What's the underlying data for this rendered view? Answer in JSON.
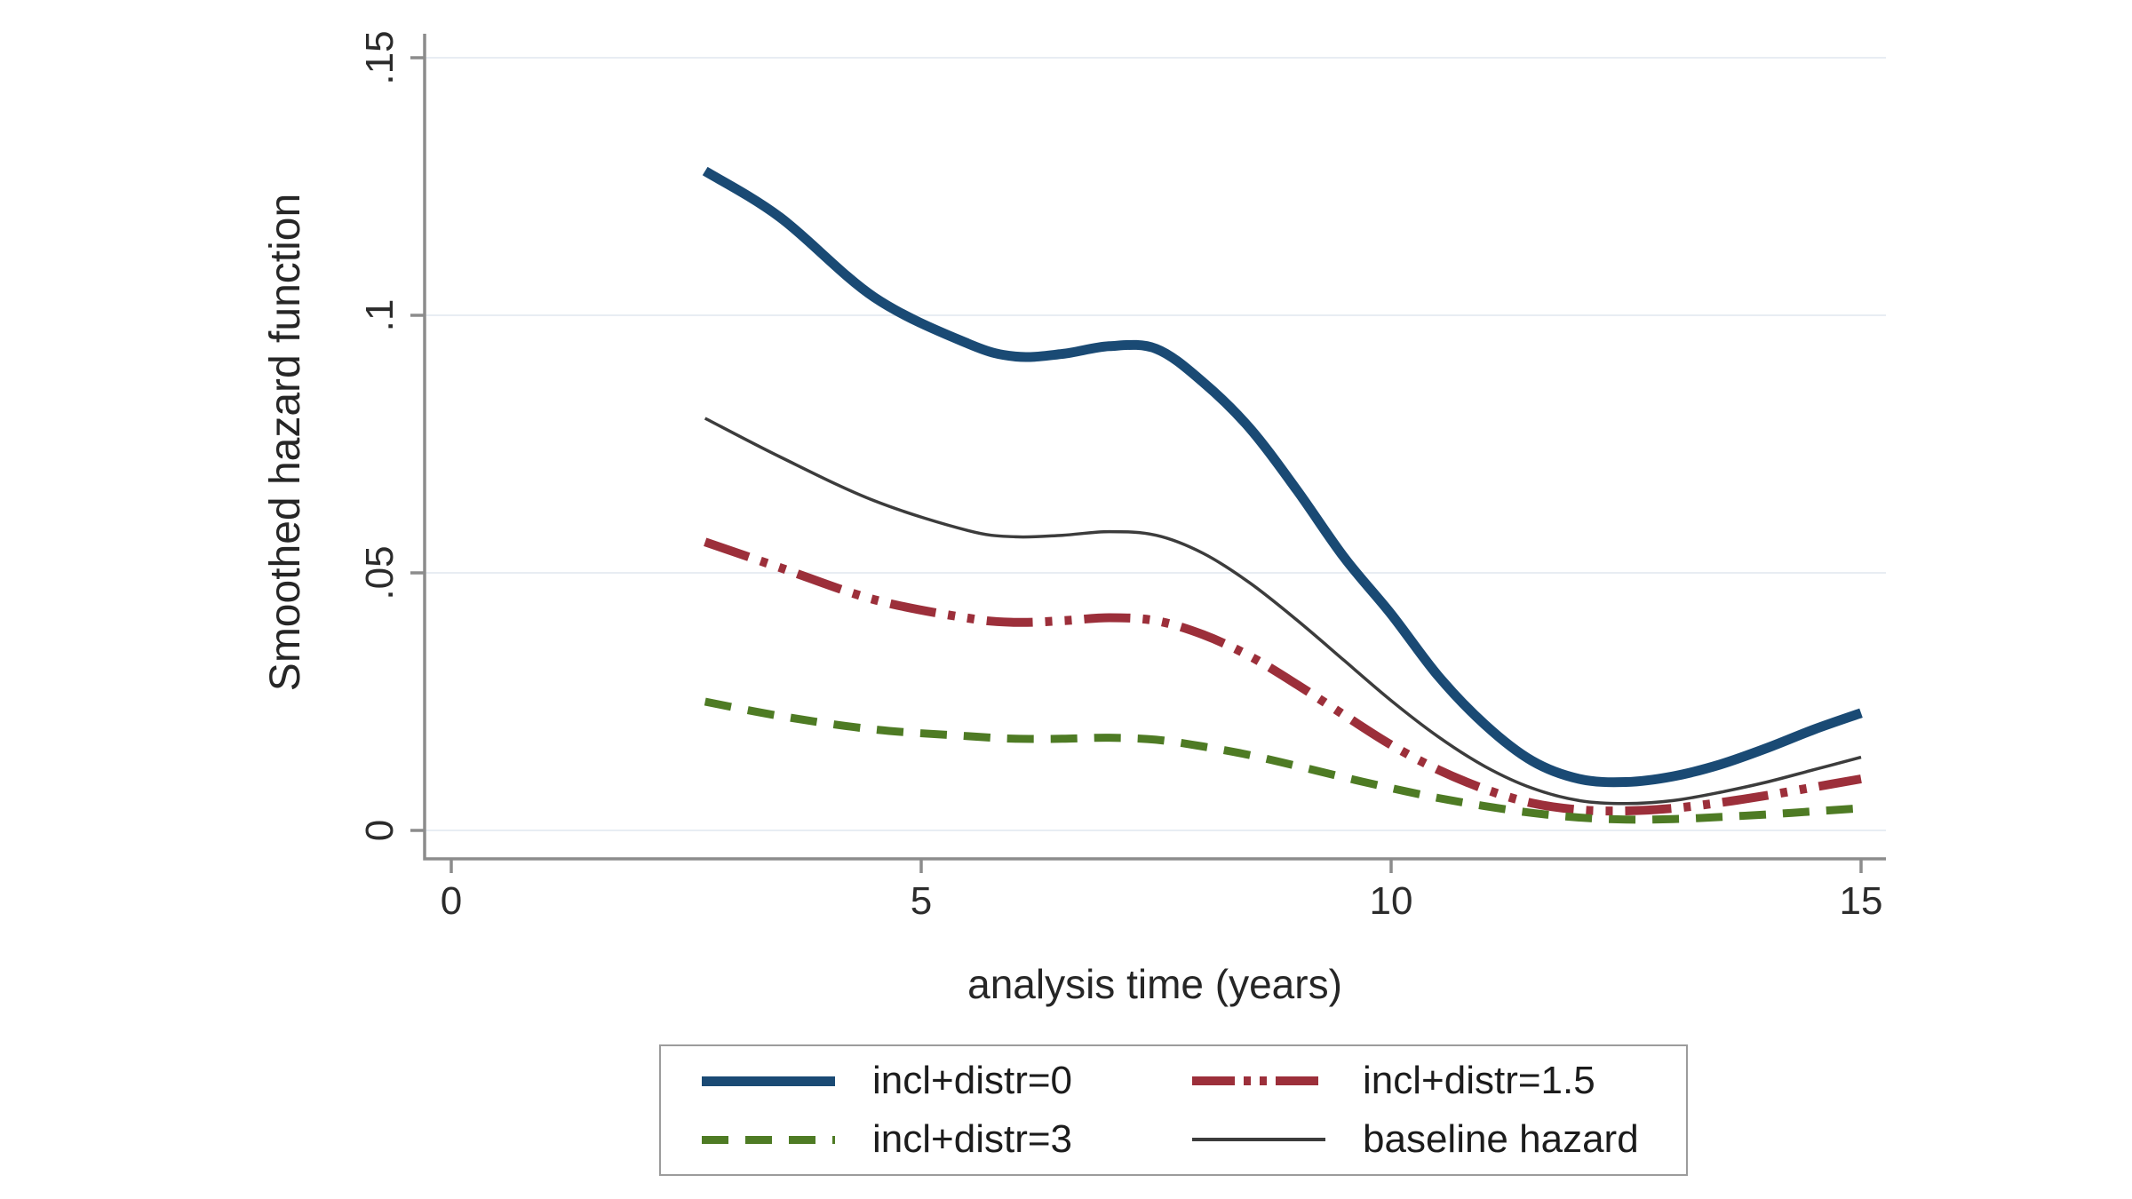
{
  "figure": {
    "background": "#ffffff",
    "axis_color": "#8c8c8c",
    "grid_color": "#e8edf3",
    "text_color": "#2b2b2b"
  },
  "chart_data": {
    "type": "line",
    "title": "",
    "xlabel": "analysis time (years)",
    "ylabel": "Smoothed hazard function",
    "xlim": [
      0,
      15
    ],
    "ylim": [
      0,
      0.15
    ],
    "xtick_values": [
      0,
      5,
      10,
      15
    ],
    "xtick_labels": [
      "0",
      "5",
      "10",
      "15"
    ],
    "ytick_values": [
      0,
      0.05,
      0.1,
      0.15
    ],
    "ytick_labels": [
      "0",
      ".05",
      ".1",
      ".15"
    ],
    "grid": true,
    "legend_position": "bottom-center",
    "x": [
      2.7,
      3.5,
      4.5,
      5.5,
      6.0,
      6.5,
      7.0,
      7.5,
      8.0,
      8.5,
      9.0,
      9.5,
      10.0,
      10.5,
      11.0,
      11.5,
      12.0,
      12.5,
      13.0,
      13.5,
      14.0,
      14.5,
      15.0
    ],
    "series": [
      {
        "name": "incl+distr=0",
        "color": "#1a4a74",
        "width": 11,
        "dash": "solid",
        "values": [
          0.128,
          0.119,
          0.1035,
          0.0945,
          0.092,
          0.0925,
          0.094,
          0.0935,
          0.087,
          0.078,
          0.066,
          0.053,
          0.042,
          0.03,
          0.0205,
          0.0135,
          0.01,
          0.0094,
          0.0105,
          0.0128,
          0.016,
          0.0196,
          0.0228
        ]
      },
      {
        "name": "incl+distr=1.5",
        "color": "#9c2f3a",
        "width": 10,
        "dash": "dash-dot-dot",
        "values": [
          0.056,
          0.051,
          0.0448,
          0.0412,
          0.0404,
          0.0407,
          0.0413,
          0.0407,
          0.038,
          0.0338,
          0.0283,
          0.0224,
          0.0166,
          0.0118,
          0.008,
          0.0053,
          0.004,
          0.0038,
          0.0043,
          0.0054,
          0.0068,
          0.0084,
          0.01
        ]
      },
      {
        "name": "incl+distr=3",
        "color": "#4e7b24",
        "width": 9,
        "dash": "dash",
        "values": [
          0.025,
          0.0222,
          0.0196,
          0.0183,
          0.0178,
          0.0178,
          0.018,
          0.0176,
          0.0163,
          0.0146,
          0.0125,
          0.0103,
          0.0082,
          0.0063,
          0.0047,
          0.0034,
          0.0025,
          0.0021,
          0.0022,
          0.0026,
          0.0031,
          0.0037,
          0.0043
        ]
      },
      {
        "name": "baseline hazard",
        "color": "#3c3c3c",
        "width": 3.5,
        "dash": "solid",
        "values": [
          0.08,
          0.0725,
          0.064,
          0.0582,
          0.057,
          0.0573,
          0.058,
          0.0573,
          0.0538,
          0.048,
          0.0408,
          0.033,
          0.0252,
          0.0182,
          0.0124,
          0.0082,
          0.0058,
          0.0052,
          0.0058,
          0.0074,
          0.0094,
          0.0118,
          0.0142
        ]
      }
    ]
  }
}
